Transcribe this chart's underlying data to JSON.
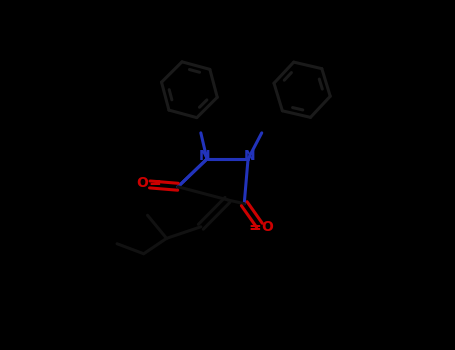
{
  "bg_color": "#000000",
  "bond_color": "#111111",
  "nitrogen_color": "#2233bb",
  "oxygen_color": "#cc0000",
  "lw": 2.2,
  "lw_thin": 1.8,
  "fig_width": 4.55,
  "fig_height": 3.5,
  "dpi": 100,
  "xlim": [
    -4.5,
    4.5
  ],
  "ylim": [
    -3.5,
    3.5
  ],
  "ring_bond_color": "#1a1a1a",
  "N_label_color": "#2233bb",
  "O_label_color": "#cc0000",
  "font_size": 10
}
